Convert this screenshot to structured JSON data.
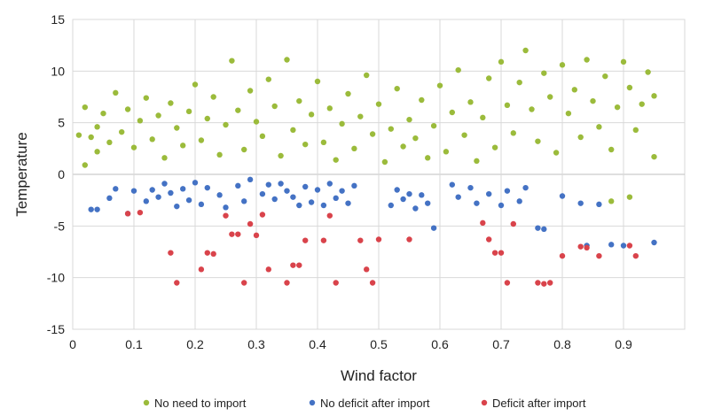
{
  "chart_data": {
    "type": "scatter",
    "title": "",
    "xlabel": "Wind factor",
    "ylabel": "Temperature",
    "xlim": [
      0,
      1
    ],
    "ylim": [
      -15,
      15
    ],
    "x_ticks": [
      0,
      0.1,
      0.2,
      0.3,
      0.4,
      0.5,
      0.6,
      0.7,
      0.8,
      0.9
    ],
    "x_tick_labels": [
      "0",
      "0.1",
      "0.2",
      "0.3",
      "0.4",
      "0.5",
      "0.6",
      "0.7",
      "0.8",
      "0.9"
    ],
    "y_ticks": [
      -15,
      -10,
      -5,
      0,
      5,
      10,
      15
    ],
    "y_tick_labels": [
      "-15",
      "-10",
      "-5",
      "0",
      "5",
      "10",
      "15"
    ],
    "grid": true,
    "legend_position": "bottom",
    "series": [
      {
        "name": "No need to import",
        "color": "#9bbb3b",
        "points": [
          [
            0.01,
            3.8
          ],
          [
            0.02,
            6.5
          ],
          [
            0.02,
            0.9
          ],
          [
            0.03,
            3.6
          ],
          [
            0.04,
            4.6
          ],
          [
            0.04,
            2.2
          ],
          [
            0.05,
            5.9
          ],
          [
            0.06,
            3.1
          ],
          [
            0.07,
            7.9
          ],
          [
            0.08,
            4.1
          ],
          [
            0.09,
            6.3
          ],
          [
            0.1,
            2.6
          ],
          [
            0.11,
            5.2
          ],
          [
            0.12,
            7.4
          ],
          [
            0.13,
            3.4
          ],
          [
            0.14,
            5.7
          ],
          [
            0.15,
            1.6
          ],
          [
            0.16,
            6.9
          ],
          [
            0.17,
            4.5
          ],
          [
            0.18,
            2.8
          ],
          [
            0.19,
            6.1
          ],
          [
            0.2,
            8.7
          ],
          [
            0.21,
            3.3
          ],
          [
            0.22,
            5.4
          ],
          [
            0.23,
            7.5
          ],
          [
            0.24,
            1.9
          ],
          [
            0.25,
            4.8
          ],
          [
            0.26,
            11.0
          ],
          [
            0.27,
            6.2
          ],
          [
            0.28,
            2.4
          ],
          [
            0.29,
            8.1
          ],
          [
            0.3,
            5.1
          ],
          [
            0.31,
            3.7
          ],
          [
            0.32,
            9.2
          ],
          [
            0.33,
            6.6
          ],
          [
            0.34,
            1.8
          ],
          [
            0.35,
            11.1
          ],
          [
            0.36,
            4.3
          ],
          [
            0.37,
            7.1
          ],
          [
            0.38,
            2.9
          ],
          [
            0.39,
            5.8
          ],
          [
            0.4,
            9.0
          ],
          [
            0.41,
            3.1
          ],
          [
            0.42,
            6.4
          ],
          [
            0.43,
            1.4
          ],
          [
            0.44,
            4.9
          ],
          [
            0.45,
            7.8
          ],
          [
            0.46,
            2.5
          ],
          [
            0.47,
            5.6
          ],
          [
            0.48,
            9.6
          ],
          [
            0.49,
            3.9
          ],
          [
            0.5,
            6.8
          ],
          [
            0.51,
            1.2
          ],
          [
            0.52,
            4.4
          ],
          [
            0.53,
            8.3
          ],
          [
            0.54,
            2.7
          ],
          [
            0.55,
            5.3
          ],
          [
            0.56,
            3.5
          ],
          [
            0.57,
            7.2
          ],
          [
            0.58,
            1.6
          ],
          [
            0.59,
            4.7
          ],
          [
            0.6,
            8.6
          ],
          [
            0.61,
            2.2
          ],
          [
            0.62,
            6.0
          ],
          [
            0.63,
            10.1
          ],
          [
            0.64,
            3.8
          ],
          [
            0.65,
            7.0
          ],
          [
            0.66,
            1.3
          ],
          [
            0.67,
            5.5
          ],
          [
            0.68,
            9.3
          ],
          [
            0.69,
            2.6
          ],
          [
            0.7,
            10.9
          ],
          [
            0.71,
            6.7
          ],
          [
            0.72,
            4.0
          ],
          [
            0.73,
            8.9
          ],
          [
            0.74,
            12.0
          ],
          [
            0.75,
            6.3
          ],
          [
            0.76,
            3.2
          ],
          [
            0.77,
            9.8
          ],
          [
            0.78,
            7.5
          ],
          [
            0.79,
            2.1
          ],
          [
            0.8,
            10.6
          ],
          [
            0.81,
            5.9
          ],
          [
            0.82,
            8.2
          ],
          [
            0.83,
            3.6
          ],
          [
            0.84,
            11.1
          ],
          [
            0.85,
            7.1
          ],
          [
            0.86,
            4.6
          ],
          [
            0.87,
            9.5
          ],
          [
            0.88,
            2.4
          ],
          [
            0.89,
            6.5
          ],
          [
            0.9,
            10.9
          ],
          [
            0.91,
            8.4
          ],
          [
            0.92,
            4.3
          ],
          [
            0.93,
            6.8
          ],
          [
            0.94,
            9.9
          ],
          [
            0.95,
            1.7
          ],
          [
            0.95,
            7.6
          ],
          [
            0.88,
            -2.6
          ],
          [
            0.91,
            -2.2
          ]
        ]
      },
      {
        "name": "No deficit after import",
        "color": "#4472c4",
        "points": [
          [
            0.03,
            -3.4
          ],
          [
            0.04,
            -3.4
          ],
          [
            0.06,
            -2.3
          ],
          [
            0.07,
            -1.4
          ],
          [
            0.09,
            -3.8
          ],
          [
            0.1,
            -1.6
          ],
          [
            0.12,
            -2.6
          ],
          [
            0.13,
            -1.5
          ],
          [
            0.14,
            -2.2
          ],
          [
            0.15,
            -0.9
          ],
          [
            0.16,
            -1.8
          ],
          [
            0.17,
            -3.1
          ],
          [
            0.18,
            -1.4
          ],
          [
            0.19,
            -2.5
          ],
          [
            0.2,
            -0.8
          ],
          [
            0.21,
            -2.9
          ],
          [
            0.22,
            -1.3
          ],
          [
            0.24,
            -2.0
          ],
          [
            0.25,
            -3.2
          ],
          [
            0.27,
            -1.1
          ],
          [
            0.28,
            -2.6
          ],
          [
            0.29,
            -0.5
          ],
          [
            0.31,
            -1.9
          ],
          [
            0.32,
            -1.0
          ],
          [
            0.33,
            -2.4
          ],
          [
            0.34,
            -0.9
          ],
          [
            0.35,
            -1.6
          ],
          [
            0.36,
            -2.2
          ],
          [
            0.37,
            -3.0
          ],
          [
            0.38,
            -1.2
          ],
          [
            0.39,
            -2.7
          ],
          [
            0.4,
            -1.5
          ],
          [
            0.41,
            -3.0
          ],
          [
            0.42,
            -0.9
          ],
          [
            0.43,
            -2.3
          ],
          [
            0.44,
            -1.6
          ],
          [
            0.45,
            -2.8
          ],
          [
            0.46,
            -1.1
          ],
          [
            0.52,
            -3.0
          ],
          [
            0.53,
            -1.5
          ],
          [
            0.54,
            -2.4
          ],
          [
            0.55,
            -1.9
          ],
          [
            0.56,
            -3.3
          ],
          [
            0.57,
            -2.0
          ],
          [
            0.58,
            -2.8
          ],
          [
            0.59,
            -5.2
          ],
          [
            0.62,
            -1.0
          ],
          [
            0.63,
            -2.2
          ],
          [
            0.65,
            -1.3
          ],
          [
            0.66,
            -2.8
          ],
          [
            0.68,
            -1.9
          ],
          [
            0.7,
            -3.0
          ],
          [
            0.71,
            -1.6
          ],
          [
            0.73,
            -2.6
          ],
          [
            0.74,
            -1.3
          ],
          [
            0.76,
            -5.2
          ],
          [
            0.77,
            -5.3
          ],
          [
            0.8,
            -2.1
          ],
          [
            0.83,
            -2.8
          ],
          [
            0.84,
            -6.9
          ],
          [
            0.86,
            -2.9
          ],
          [
            0.88,
            -6.8
          ],
          [
            0.9,
            -6.9
          ],
          [
            0.95,
            -6.6
          ]
        ]
      },
      {
        "name": "Deficit after import",
        "color": "#d9434b",
        "points": [
          [
            0.09,
            -3.8
          ],
          [
            0.11,
            -3.7
          ],
          [
            0.16,
            -7.6
          ],
          [
            0.17,
            -10.5
          ],
          [
            0.21,
            -9.2
          ],
          [
            0.22,
            -7.6
          ],
          [
            0.23,
            -7.7
          ],
          [
            0.25,
            -4.0
          ],
          [
            0.26,
            -5.8
          ],
          [
            0.27,
            -5.8
          ],
          [
            0.28,
            -10.5
          ],
          [
            0.29,
            -4.8
          ],
          [
            0.3,
            -5.9
          ],
          [
            0.31,
            -3.9
          ],
          [
            0.32,
            -9.2
          ],
          [
            0.35,
            -10.5
          ],
          [
            0.36,
            -8.8
          ],
          [
            0.37,
            -8.8
          ],
          [
            0.38,
            -6.4
          ],
          [
            0.41,
            -6.4
          ],
          [
            0.42,
            -4.0
          ],
          [
            0.43,
            -10.5
          ],
          [
            0.47,
            -6.4
          ],
          [
            0.48,
            -9.2
          ],
          [
            0.49,
            -10.5
          ],
          [
            0.5,
            -6.3
          ],
          [
            0.55,
            -6.3
          ],
          [
            0.67,
            -4.7
          ],
          [
            0.68,
            -6.3
          ],
          [
            0.69,
            -7.6
          ],
          [
            0.7,
            -7.6
          ],
          [
            0.71,
            -10.5
          ],
          [
            0.72,
            -4.8
          ],
          [
            0.76,
            -10.5
          ],
          [
            0.77,
            -10.6
          ],
          [
            0.78,
            -10.5
          ],
          [
            0.8,
            -7.9
          ],
          [
            0.83,
            -7.0
          ],
          [
            0.84,
            -7.1
          ],
          [
            0.86,
            -7.9
          ],
          [
            0.91,
            -6.9
          ],
          [
            0.92,
            -7.9
          ]
        ]
      }
    ]
  }
}
